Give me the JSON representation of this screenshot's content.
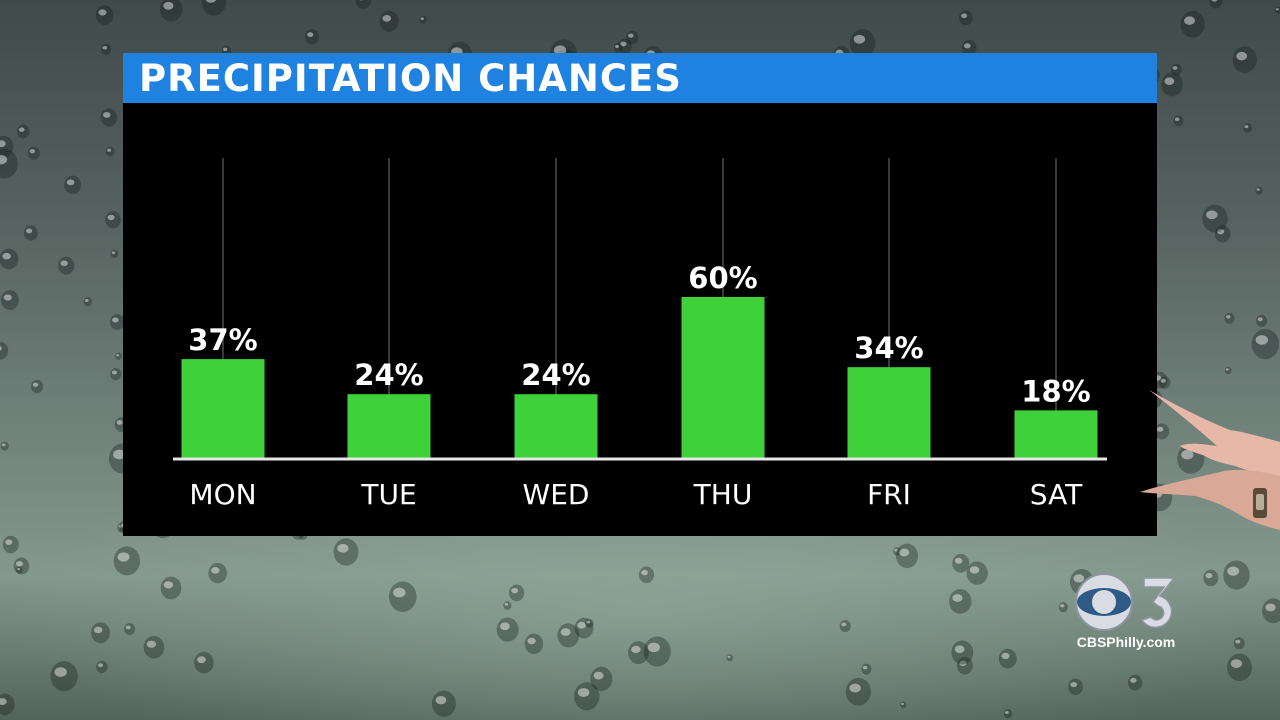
{
  "title": "PRECIPITATION CHANCES",
  "chart_data": {
    "type": "bar",
    "title": "PRECIPITATION CHANCES",
    "categories": [
      "MON",
      "TUE",
      "WED",
      "THU",
      "FRI",
      "SAT"
    ],
    "values": [
      37,
      24,
      24,
      60,
      34,
      18
    ],
    "value_labels": [
      "37%",
      "24%",
      "24%",
      "60%",
      "34%",
      "18%"
    ],
    "unit": "%",
    "ylim": [
      0,
      100
    ],
    "grid": "vertical lines behind each bar",
    "legend": "none",
    "bar_color": "#3ed13a"
  },
  "branding": {
    "logo_icon": "cbs-eye-3-logo",
    "url": "CBSPhilly.com"
  },
  "colors": {
    "title_bar": "#1f82e0",
    "panel": "#000000",
    "bar": "#3ed13a",
    "text": "#ffffff"
  }
}
